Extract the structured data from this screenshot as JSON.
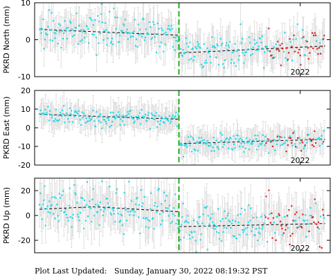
{
  "footer_text": "Plot Last Updated:   Sunday, January 30, 2022 08:19:32 PST",
  "colors": {
    "normal_points": "#22d9e8",
    "recent_points": "#dd2020",
    "error_bars": "#d8d8d8",
    "trend_line": "#000000",
    "offset_line": "#22b022"
  },
  "chart_data": [
    {
      "type": "scatter",
      "ylabel": "PKRD North (mm)",
      "ylim": [
        -10,
        10
      ],
      "yticks": [
        -10,
        0,
        10
      ],
      "xlabel_tick": "2022",
      "xlim": [
        2019.35,
        2022.3
      ],
      "offset_date": 2020.79,
      "recent_start": 2021.65,
      "grid": false,
      "trend": [
        {
          "x": [
            2019.4,
            2020.79
          ],
          "y": [
            2.8,
            1.2
          ]
        },
        {
          "x": [
            2020.79,
            2022.25
          ],
          "y": [
            -3.6,
            -1.7
          ]
        }
      ],
      "noise": {
        "scatter": 2.3,
        "error": 4.0
      }
    },
    {
      "type": "scatter",
      "ylabel": "PKRD East (mm)",
      "ylim": [
        -20,
        20
      ],
      "yticks": [
        -20,
        -10,
        0,
        10,
        20
      ],
      "xlabel_tick": "2022",
      "xlim": [
        2019.35,
        2022.3
      ],
      "offset_date": 2020.79,
      "recent_start": 2021.65,
      "grid": false,
      "trend": [
        {
          "x": [
            2019.4,
            2020.79
          ],
          "y": [
            7.2,
            4.6
          ]
        },
        {
          "x": [
            2020.79,
            2022.25
          ],
          "y": [
            -8.5,
            -6.2
          ]
        }
      ],
      "noise": {
        "scatter": 2.4,
        "error": 6.0
      }
    },
    {
      "type": "scatter",
      "ylabel": "PKRD Up (mm)",
      "ylim": [
        -30,
        30
      ],
      "yticks": [
        -20,
        0,
        20
      ],
      "xlabel_tick": "2022",
      "xlim": [
        2019.35,
        2022.3
      ],
      "offset_date": 2020.79,
      "recent_start": 2021.65,
      "grid": false,
      "trend": [
        {
          "x": [
            2019.4,
            2019.95,
            2020.79
          ],
          "y": [
            5.0,
            7.0,
            3.0
          ]
        },
        {
          "x": [
            2020.79,
            2022.25
          ],
          "y": [
            -9.0,
            -6.5
          ]
        }
      ],
      "noise": {
        "scatter": 8.5,
        "error": 14.0
      }
    }
  ]
}
